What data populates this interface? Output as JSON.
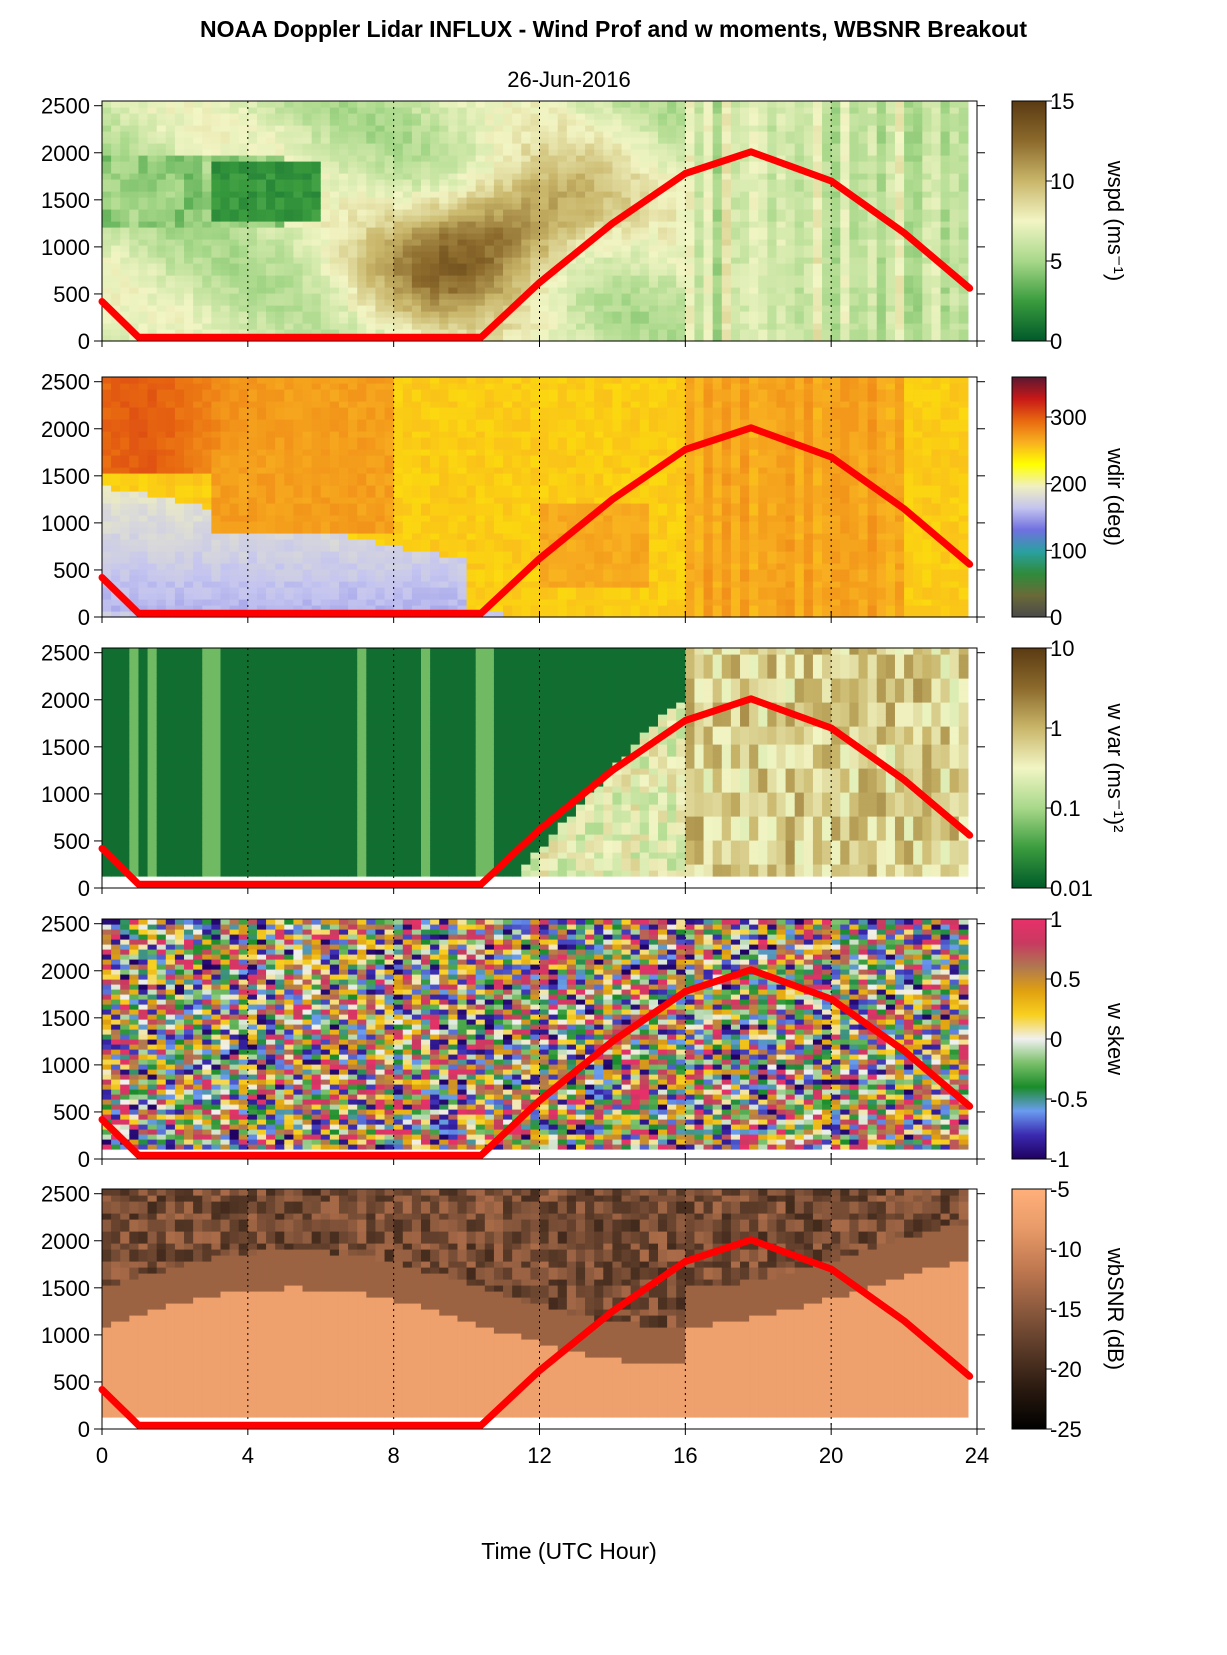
{
  "title": "NOAA Doppler Lidar INFLUX - Wind Prof and w moments, WBSNR Breakout",
  "date": "26-Jun-2016",
  "chart_data": {
    "type": "heatmap",
    "xlabel": "Time (UTC Hour)",
    "xlim": [
      0,
      24
    ],
    "xticks": [
      "0",
      "4",
      "8",
      "12",
      "16",
      "20",
      "24"
    ],
    "yticks": [
      "0",
      "500",
      "1000",
      "1500",
      "2000",
      "2500"
    ],
    "ylim": [
      0,
      2550
    ],
    "x_gridlines": [
      4,
      8,
      12,
      16,
      20
    ],
    "grid": "dotted vertical lines at 4-hour intervals",
    "overlay": {
      "description": "red solar-elevation curve",
      "color": "#ff0000",
      "points": [
        {
          "x": 0,
          "y": 420
        },
        {
          "x": 1,
          "y": 40
        },
        {
          "x": 10.4,
          "y": 40
        },
        {
          "x": 12,
          "y": 620
        },
        {
          "x": 14,
          "y": 1250
        },
        {
          "x": 16,
          "y": 1780
        },
        {
          "x": 17.8,
          "y": 2010
        },
        {
          "x": 20,
          "y": 1700
        },
        {
          "x": 22,
          "y": 1150
        },
        {
          "x": 23.8,
          "y": 560
        }
      ]
    },
    "panels": [
      {
        "variable": "wspd",
        "colorbar_label": "wspd (ms⁻¹)",
        "colorbar_ticks": [
          "15",
          "10",
          "5",
          "0"
        ],
        "colorbar_range": [
          0,
          15
        ],
        "colormap": [
          "#005a2a",
          "#3a9c3e",
          "#a8d88a",
          "#f2f5c4",
          "#c9b66a",
          "#8c6a2c",
          "#5a3a12"
        ]
      },
      {
        "variable": "wdir",
        "colorbar_label": "wdir (deg)",
        "colorbar_ticks": [
          "300",
          "200",
          "100",
          "0"
        ],
        "colorbar_range": [
          0,
          360
        ],
        "colormap": [
          "#4a4a4a",
          "#6a6a38",
          "#2e8c3c",
          "#2aa0a0",
          "#7070e0",
          "#c4c4f0",
          "#f0f0c0",
          "#ffff00",
          "#f8b020",
          "#e86810",
          "#c81818",
          "#5a1830"
        ]
      },
      {
        "variable": "w var",
        "colorbar_label": "w var (ms⁻¹)²",
        "colorbar_ticks": [
          "10",
          "1",
          "0.1",
          "0.01"
        ],
        "colorbar_range": [
          0.01,
          10
        ],
        "scale": "log",
        "colormap": [
          "#005a2a",
          "#3a9c3e",
          "#a8d88a",
          "#f2f5c4",
          "#c9b66a",
          "#8c6a2c",
          "#5a3a12"
        ]
      },
      {
        "variable": "w skew",
        "colorbar_label": "w skew",
        "colorbar_ticks": [
          "1",
          "0.5",
          "0",
          "-0.5",
          "-1"
        ],
        "colorbar_range": [
          -1,
          1
        ],
        "colormap": [
          "#200060",
          "#3a2ab0",
          "#6a9cf0",
          "#1a8c2a",
          "#7ac06a",
          "#f0f0f0",
          "#f8d020",
          "#e0a010",
          "#b07850",
          "#c83a60",
          "#e8306a"
        ]
      },
      {
        "variable": "wbSNR",
        "colorbar_label": "wbSNR (dB)",
        "colorbar_ticks": [
          "-5",
          "-10",
          "-15",
          "-20",
          "-25"
        ],
        "colorbar_range": [
          -25,
          -5
        ],
        "colormap": [
          "#000000",
          "#2a1a10",
          "#5a3a28",
          "#8c5a3e",
          "#c07850",
          "#e89a68",
          "#ffb07a"
        ]
      }
    ]
  }
}
